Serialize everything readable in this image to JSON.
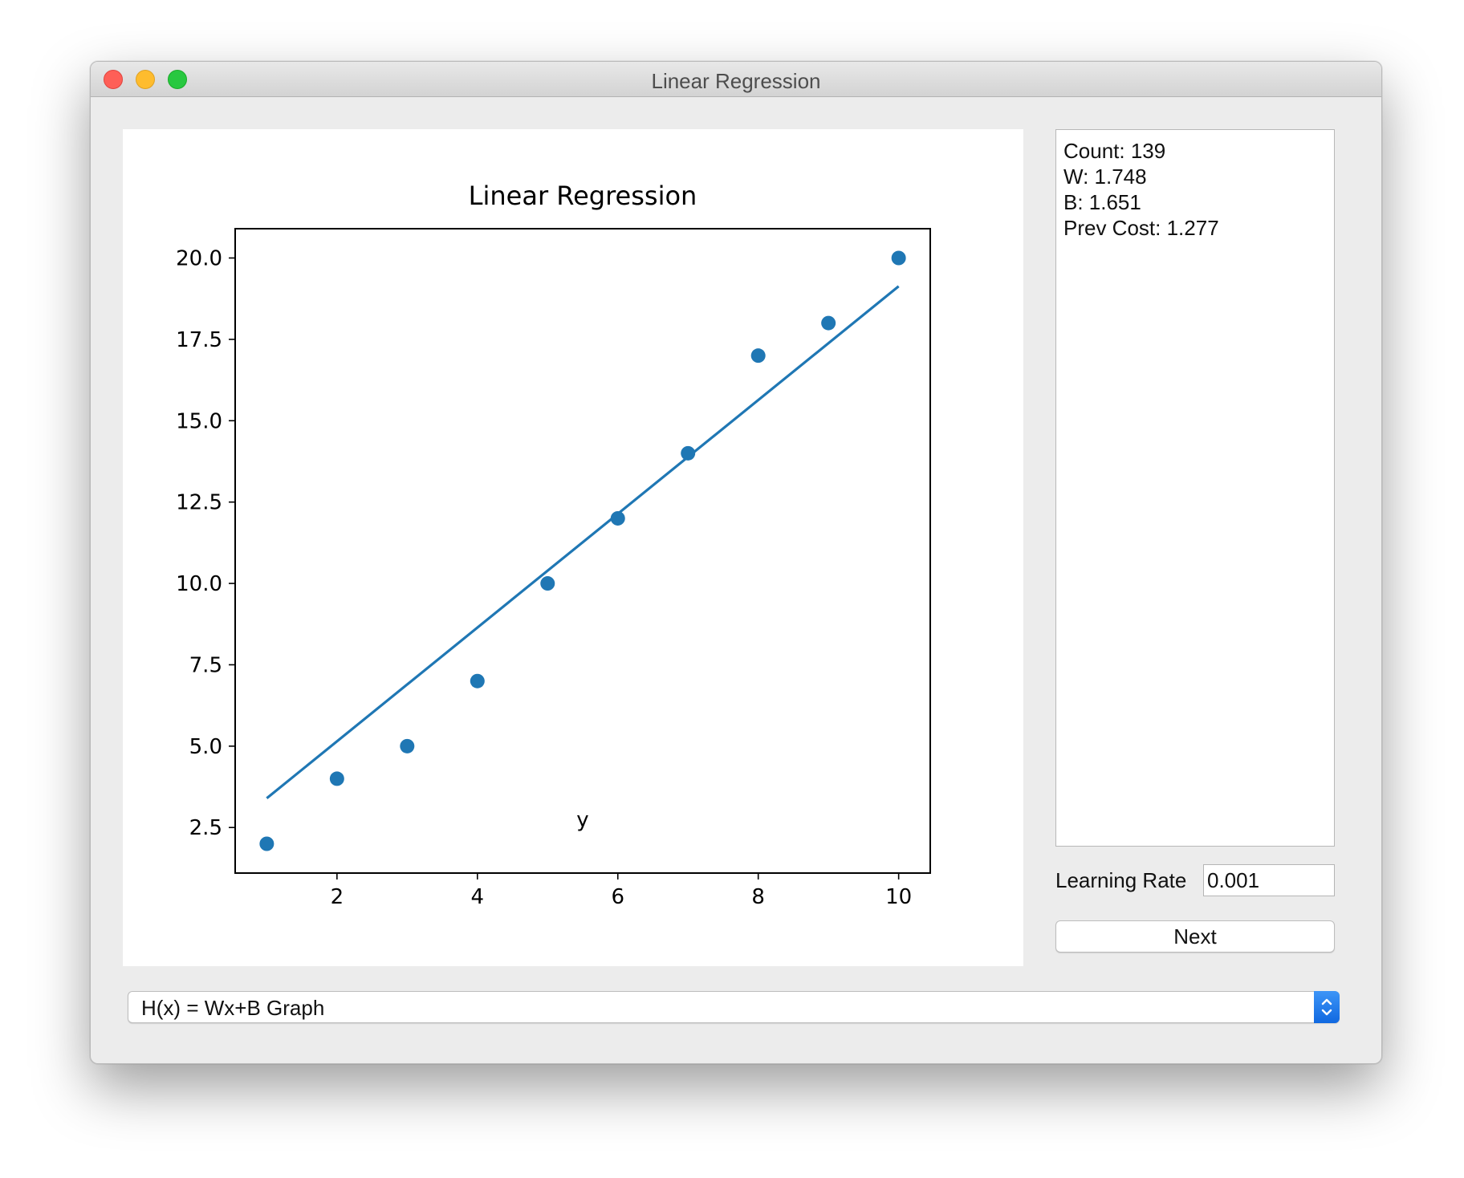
{
  "window": {
    "title": "Linear Regression"
  },
  "info": {
    "count": "Count: 139",
    "w": "W: 1.748",
    "b": "B: 1.651",
    "prev_cost": "Prev Cost: 1.277"
  },
  "learning_rate": {
    "label": "Learning Rate",
    "value": "0.001"
  },
  "next_button": {
    "label": "Next"
  },
  "graph_selector": {
    "selected": "H(x) = Wx+B Graph"
  },
  "colors": {
    "series": "#1f77b4",
    "accent": "#1a73e8"
  },
  "chart_data": {
    "type": "scatter",
    "title": "Linear Regression",
    "xlabel": "y",
    "ylabel": "",
    "xlim": [
      0.55,
      10.45
    ],
    "ylim": [
      1.1,
      20.9
    ],
    "xticks": [
      2,
      4,
      6,
      8,
      10
    ],
    "xtick_labels": [
      "2",
      "4",
      "6",
      "8",
      "10"
    ],
    "yticks": [
      2.5,
      5.0,
      7.5,
      10.0,
      12.5,
      15.0,
      17.5,
      20.0
    ],
    "ytick_labels": [
      "2.5",
      "5.0",
      "7.5",
      "10.0",
      "12.5",
      "15.0",
      "17.5",
      "20.0"
    ],
    "grid": false,
    "series": [
      {
        "type": "scatter",
        "x": [
          1,
          2,
          3,
          4,
          5,
          6,
          7,
          8,
          9,
          10
        ],
        "y": [
          2,
          4,
          5,
          7,
          10,
          12,
          14,
          17,
          18,
          20
        ]
      },
      {
        "type": "line",
        "x": [
          1,
          10
        ],
        "y": [
          3.4,
          19.13
        ]
      }
    ]
  }
}
